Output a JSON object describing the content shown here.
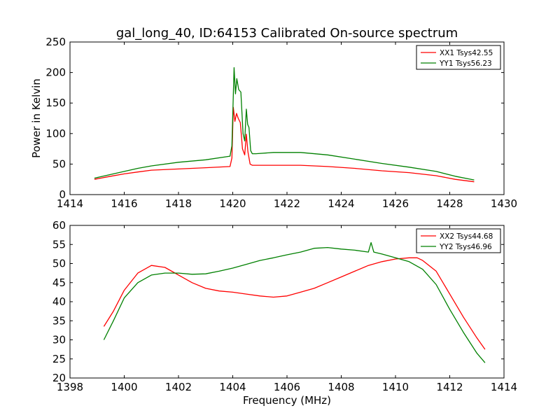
{
  "title": "gal_long_40, ID:64153 Calibrated On-source spectrum",
  "colors": {
    "xx": "#ff0000",
    "yy": "#008000"
  },
  "chart_data": [
    {
      "type": "line",
      "xlabel": "",
      "ylabel": "Power in Kelvin",
      "xlim": [
        1414,
        1430
      ],
      "ylim": [
        0,
        250
      ],
      "xticks": [
        1414,
        1416,
        1418,
        1420,
        1422,
        1424,
        1426,
        1428,
        1430
      ],
      "yticks": [
        0,
        50,
        100,
        150,
        200,
        250
      ],
      "legend_position": "upper-right",
      "series": [
        {
          "name": "XX1 Tsys42.55",
          "color": "#ff0000",
          "x": [
            1414.9,
            1415.5,
            1416,
            1416.5,
            1417,
            1418,
            1419,
            1419.9,
            1419.97,
            1420.02,
            1420.08,
            1420.14,
            1420.2,
            1420.28,
            1420.36,
            1420.44,
            1420.5,
            1420.56,
            1420.64,
            1420.72,
            1420.85,
            1421.5,
            1422.5,
            1423.5,
            1424.5,
            1425.5,
            1426.5,
            1427.5,
            1428.2,
            1428.9
          ],
          "y": [
            25,
            30,
            34,
            37,
            40,
            42,
            44,
            46,
            60,
            143,
            120,
            133,
            125,
            118,
            75,
            65,
            99,
            70,
            50,
            48,
            48,
            48,
            48,
            46,
            43,
            39,
            36,
            31,
            25,
            21
          ]
        },
        {
          "name": "YY1 Tsys56.23",
          "color": "#008000",
          "x": [
            1414.9,
            1415.5,
            1416,
            1416.5,
            1417,
            1418,
            1419,
            1419.9,
            1419.97,
            1420.05,
            1420.1,
            1420.15,
            1420.22,
            1420.3,
            1420.38,
            1420.44,
            1420.5,
            1420.55,
            1420.6,
            1420.66,
            1420.72,
            1420.85,
            1421.5,
            1422.5,
            1423.5,
            1424.5,
            1425.5,
            1426.5,
            1427.5,
            1428.2,
            1428.9
          ],
          "y": [
            27,
            33,
            38,
            43,
            47,
            53,
            57,
            63,
            80,
            208,
            165,
            190,
            172,
            168,
            100,
            88,
            140,
            115,
            110,
            72,
            67,
            67,
            69,
            69,
            65,
            58,
            51,
            45,
            38,
            30,
            24
          ]
        }
      ]
    },
    {
      "type": "line",
      "xlabel": "Frequency (MHz)",
      "ylabel": "",
      "xlim": [
        1398,
        1414
      ],
      "ylim": [
        20,
        60
      ],
      "xticks": [
        1398,
        1400,
        1402,
        1404,
        1406,
        1408,
        1410,
        1412,
        1414
      ],
      "yticks": [
        20,
        25,
        30,
        35,
        40,
        45,
        50,
        55,
        60
      ],
      "legend_position": "upper-right",
      "series": [
        {
          "name": "XX2 Tsys44.68",
          "color": "#ff0000",
          "x": [
            1399.25,
            1399.6,
            1400,
            1400.5,
            1401,
            1401.5,
            1402,
            1402.5,
            1403,
            1403.5,
            1404,
            1404.5,
            1405,
            1405.5,
            1406,
            1406.5,
            1407,
            1407.5,
            1408,
            1408.5,
            1409,
            1409.5,
            1410,
            1410.5,
            1410.8,
            1411,
            1411.5,
            1412,
            1412.5,
            1413,
            1413.3
          ],
          "y": [
            33.5,
            37.5,
            43,
            47.5,
            49.5,
            49,
            47,
            45,
            43.5,
            42.8,
            42.5,
            42,
            41.5,
            41.2,
            41.5,
            42.5,
            43.5,
            45,
            46.5,
            48,
            49.5,
            50.5,
            51.2,
            51.5,
            51.5,
            50.8,
            48,
            42,
            36,
            30.5,
            27.5
          ]
        },
        {
          "name": "YY2 Tsys46.96",
          "color": "#008000",
          "x": [
            1399.25,
            1399.6,
            1400,
            1400.5,
            1401,
            1401.5,
            1402,
            1402.5,
            1403,
            1403.5,
            1404,
            1404.5,
            1405,
            1405.5,
            1406,
            1406.5,
            1407,
            1407.5,
            1408,
            1408.5,
            1409,
            1409.1,
            1409.2,
            1409.5,
            1410,
            1410.5,
            1411,
            1411.5,
            1412,
            1412.5,
            1413,
            1413.3
          ],
          "y": [
            30,
            35,
            41,
            45,
            47,
            47.5,
            47.5,
            47.2,
            47.3,
            48,
            48.8,
            49.8,
            50.8,
            51.5,
            52.3,
            53,
            54,
            54.2,
            53.8,
            53.5,
            53,
            55.5,
            53,
            52.5,
            51.5,
            50.5,
            48.5,
            44.5,
            38,
            32,
            26.5,
            24
          ]
        }
      ]
    }
  ]
}
